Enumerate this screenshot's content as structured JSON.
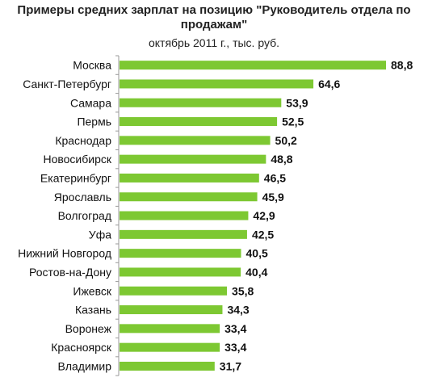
{
  "chart_data": {
    "type": "bar",
    "orientation": "horizontal",
    "title": "Примеры средних зарплат на позицию \"Руководитель отдела по продажам\"",
    "subtitle": "октябрь 2011 г., тыс. руб.",
    "categories": [
      "Москва",
      "Санкт-Петербург",
      "Самара",
      "Пермь",
      "Краснодар",
      "Новосибирск",
      "Екатеринбург",
      "Ярославль",
      "Волгоград",
      "Уфа",
      "Нижний Новгород",
      "Ростов-на-Дону",
      "Ижевск",
      "Казань",
      "Воронеж",
      "Красноярск",
      "Владимир"
    ],
    "values": [
      88.8,
      64.6,
      53.9,
      52.5,
      50.2,
      48.8,
      46.5,
      45.9,
      42.9,
      42.5,
      40.5,
      40.4,
      35.8,
      34.3,
      33.4,
      33.4,
      31.7
    ],
    "value_labels": [
      "88,8",
      "64,6",
      "53,9",
      "52,5",
      "50,2",
      "48,8",
      "46,5",
      "45,9",
      "42,9",
      "42,5",
      "40,5",
      "40,4",
      "35,8",
      "34,3",
      "33,4",
      "33,4",
      "31,7"
    ],
    "xlim": [
      0,
      88.8
    ],
    "grid": false,
    "legend": "none",
    "bar_color": "#7dc832"
  }
}
